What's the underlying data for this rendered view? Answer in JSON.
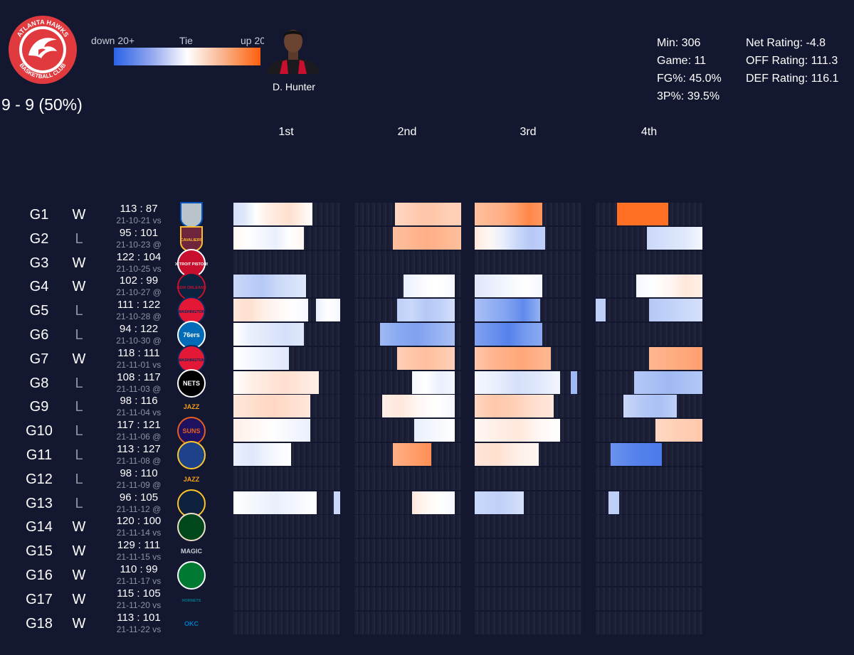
{
  "team": {
    "logo_name": "atlanta-hawks-logo",
    "logo_text_top": "ATLANTA HAWKS",
    "logo_text_bottom": "BASKETBALL CLUB",
    "record": "9 - 9 (50%)"
  },
  "legend": {
    "low_label": "down 20+",
    "mid_label": "Tie",
    "high_label": "up 20+",
    "colors": {
      "low": "#2b63e6",
      "mid": "#ffffff",
      "high": "#ff5f0c"
    }
  },
  "player": {
    "name": "D. Hunter",
    "icon": "player-headshot-icon"
  },
  "stats_left": [
    "Min: 306",
    "Game: 11",
    "FG%: 45.0%",
    "3P%: 39.5%"
  ],
  "stats_right": [
    "Net Rating: -4.8",
    "OFF Rating: 111.3",
    "DEF Rating: 116.1"
  ],
  "quarters": [
    "1st",
    "2nd",
    "3rd",
    "4th"
  ],
  "chart_data": {
    "type": "heatmap",
    "title": "",
    "color_scale": {
      "min_label": "down 20+",
      "mid_label": "Tie",
      "max_label": "up 20+",
      "range": [
        -20,
        20
      ]
    },
    "quarters": [
      "1st",
      "2nd",
      "3rd",
      "4th"
    ],
    "games": [
      {
        "game": "G1",
        "result": "W",
        "score": "113 : 87",
        "date_loc": "21-10-21 vs",
        "opponent": "DAL",
        "stints": [
          {
            "q": 1,
            "from": 0,
            "to": 0.74,
            "margins": [
              -4,
              -3,
              0,
              2,
              3,
              4,
              2,
              0
            ]
          },
          {
            "q": 2,
            "from": 0.38,
            "to": 1.0,
            "margins": [
              5,
              6,
              7,
              7,
              6,
              6
            ]
          },
          {
            "q": 3,
            "from": 0,
            "to": 0.63,
            "margins": [
              8,
              9,
              10,
              12,
              15,
              13
            ]
          },
          {
            "q": 4,
            "from": 0.2,
            "to": 0.68,
            "margins": [
              18,
              18,
              18
            ]
          }
        ]
      },
      {
        "game": "G2",
        "result": "L",
        "score": "95 : 101",
        "date_loc": "21-10-23 @",
        "opponent": "CLE",
        "stints": [
          {
            "q": 1,
            "from": 0,
            "to": 0.66,
            "margins": [
              1,
              0,
              -1,
              -2,
              0,
              1
            ]
          },
          {
            "q": 2,
            "from": 0.36,
            "to": 1.0,
            "margins": [
              8,
              9,
              10,
              9,
              8
            ]
          },
          {
            "q": 3,
            "from": 0,
            "to": 0.66,
            "margins": [
              3,
              1,
              -2,
              -5,
              -7,
              -6
            ]
          },
          {
            "q": 4,
            "from": 0.48,
            "to": 1.0,
            "margins": [
              -5,
              -4,
              -3,
              -1
            ]
          }
        ]
      },
      {
        "game": "G3",
        "result": "W",
        "score": "122 : 104",
        "date_loc": "21-10-25 vs",
        "opponent": "DET",
        "stints": []
      },
      {
        "game": "G4",
        "result": "W",
        "score": "102 : 99",
        "date_loc": "21-10-27 @",
        "opponent": "NOP",
        "stints": [
          {
            "q": 1,
            "from": 0,
            "to": 0.68,
            "margins": [
              -5,
              -6,
              -7,
              -5,
              -4,
              -3
            ]
          },
          {
            "q": 2,
            "from": 0.46,
            "to": 0.94,
            "margins": [
              -2,
              -1,
              0,
              0,
              -1
            ]
          },
          {
            "q": 3,
            "from": 0,
            "to": 0.63,
            "margins": [
              -3,
              -2,
              -1,
              0,
              -1
            ]
          },
          {
            "q": 4,
            "from": 0.38,
            "to": 1.0,
            "margins": [
              -1,
              0,
              1,
              3,
              2
            ]
          }
        ]
      },
      {
        "game": "G5",
        "result": "L",
        "score": "111 : 122",
        "date_loc": "21-10-28 @",
        "opponent": "WAS",
        "stints": [
          {
            "q": 1,
            "from": 0,
            "to": 0.7,
            "margins": [
              3,
              4,
              2,
              1,
              0,
              -1
            ]
          },
          {
            "q": 1,
            "from": 0.77,
            "to": 1.0,
            "margins": [
              -2,
              0,
              -1
            ]
          },
          {
            "q": 2,
            "from": 0.4,
            "to": 0.94,
            "margins": [
              -6,
              -5,
              -7,
              -6,
              -4
            ]
          },
          {
            "q": 3,
            "from": 0,
            "to": 0.61,
            "margins": [
              -8,
              -10,
              -12,
              -15,
              -10
            ]
          },
          {
            "q": 4,
            "from": 0.0,
            "to": 0.09,
            "margins": [
              -6
            ]
          },
          {
            "q": 4,
            "from": 0.5,
            "to": 1.0,
            "margins": [
              -7,
              -6,
              -5,
              -4
            ]
          }
        ]
      },
      {
        "game": "G6",
        "result": "L",
        "score": "94 : 122",
        "date_loc": "21-10-30 @",
        "opponent": "PHI",
        "stints": [
          {
            "q": 1,
            "from": 0,
            "to": 0.66,
            "margins": [
              0,
              -2,
              -3,
              -4,
              -3
            ]
          },
          {
            "q": 2,
            "from": 0.24,
            "to": 0.94,
            "margins": [
              -9,
              -11,
              -12,
              -10,
              -8
            ]
          },
          {
            "q": 3,
            "from": 0,
            "to": 0.63,
            "margins": [
              -12,
              -14,
              -16,
              -13,
              -11
            ]
          }
        ]
      },
      {
        "game": "G7",
        "result": "W",
        "score": "118 : 111",
        "date_loc": "21-11-01 vs",
        "opponent": "WAS",
        "stints": [
          {
            "q": 1,
            "from": 0,
            "to": 0.52,
            "margins": [
              0,
              -1,
              -2,
              -3
            ]
          },
          {
            "q": 2,
            "from": 0.4,
            "to": 0.94,
            "margins": [
              6,
              7,
              8,
              7,
              6
            ]
          },
          {
            "q": 3,
            "from": 0,
            "to": 0.71,
            "margins": [
              7,
              9,
              10,
              11,
              10,
              9
            ]
          },
          {
            "q": 4,
            "from": 0.5,
            "to": 1.0,
            "margins": [
              9,
              10,
              11,
              12
            ]
          }
        ]
      },
      {
        "game": "G8",
        "result": "L",
        "score": "108 : 117",
        "date_loc": "21-11-03 @",
        "opponent": "BKN",
        "stints": [
          {
            "q": 1,
            "from": 0,
            "to": 0.8,
            "margins": [
              0,
              2,
              3,
              4,
              3,
              2
            ]
          },
          {
            "q": 2,
            "from": 0.54,
            "to": 0.94,
            "margins": [
              -1,
              0,
              -2,
              -1
            ]
          },
          {
            "q": 3,
            "from": 0,
            "to": 0.8,
            "margins": [
              -1,
              -2,
              -4,
              -3,
              -1
            ]
          },
          {
            "q": 3,
            "from": 0.9,
            "to": 0.96,
            "margins": [
              -9
            ]
          },
          {
            "q": 4,
            "from": 0.36,
            "to": 1.0,
            "margins": [
              -7,
              -8,
              -9,
              -8,
              -7
            ]
          }
        ]
      },
      {
        "game": "G9",
        "result": "L",
        "score": "98 : 116",
        "date_loc": "21-11-04 vs",
        "opponent": "UTA",
        "stints": [
          {
            "q": 1,
            "from": 0,
            "to": 0.72,
            "margins": [
              3,
              4,
              5,
              4,
              3
            ]
          },
          {
            "q": 2,
            "from": 0.26,
            "to": 0.94,
            "margins": [
              2,
              3,
              1,
              0,
              -1
            ]
          },
          {
            "q": 3,
            "from": 0,
            "to": 0.74,
            "margins": [
              5,
              7,
              6,
              4,
              3
            ]
          },
          {
            "q": 4,
            "from": 0.26,
            "to": 0.76,
            "margins": [
              -5,
              -7,
              -8,
              -6
            ]
          }
        ]
      },
      {
        "game": "G10",
        "result": "L",
        "score": "117 : 121",
        "date_loc": "21-11-06 @",
        "opponent": "PHX",
        "stints": [
          {
            "q": 1,
            "from": 0,
            "to": 0.72,
            "margins": [
              2,
              1,
              0,
              -1,
              -2
            ]
          },
          {
            "q": 2,
            "from": 0.56,
            "to": 0.94,
            "margins": [
              -2,
              -1,
              0
            ]
          },
          {
            "q": 3,
            "from": 0,
            "to": 0.8,
            "margins": [
              1,
              2,
              3,
              1,
              0
            ]
          },
          {
            "q": 4,
            "from": 0.56,
            "to": 1.0,
            "margins": [
              5,
              6,
              7
            ]
          }
        ]
      },
      {
        "game": "G11",
        "result": "L",
        "score": "113 : 127",
        "date_loc": "21-11-08 @",
        "opponent": "GSW",
        "stints": [
          {
            "q": 1,
            "from": 0,
            "to": 0.54,
            "margins": [
              -2,
              -3,
              -1,
              0
            ]
          },
          {
            "q": 2,
            "from": 0.36,
            "to": 0.72,
            "margins": [
              10,
              12,
              14
            ]
          },
          {
            "q": 3,
            "from": 0,
            "to": 0.6,
            "margins": [
              3,
              4,
              2,
              1
            ]
          },
          {
            "q": 4,
            "from": 0.14,
            "to": 0.62,
            "margins": [
              -14,
              -16,
              -17
            ]
          }
        ]
      },
      {
        "game": "G12",
        "result": "L",
        "score": "98 : 110",
        "date_loc": "21-11-09 @",
        "opponent": "UTA",
        "stints": []
      },
      {
        "game": "G13",
        "result": "L",
        "score": "96 : 105",
        "date_loc": "21-11-12 @",
        "opponent": "DEN",
        "stints": [
          {
            "q": 1,
            "from": 0,
            "to": 0.78,
            "margins": [
              0,
              -1,
              -2,
              -1,
              0
            ]
          },
          {
            "q": 1,
            "from": 0.94,
            "to": 1.0,
            "margins": [
              -5
            ]
          },
          {
            "q": 2,
            "from": 0.54,
            "to": 0.94,
            "margins": [
              3,
              1,
              0,
              -1
            ]
          },
          {
            "q": 3,
            "from": 0,
            "to": 0.46,
            "margins": [
              -5,
              -6,
              -4
            ]
          },
          {
            "q": 4,
            "from": 0.12,
            "to": 0.22,
            "margins": [
              -6
            ]
          }
        ]
      },
      {
        "game": "G14",
        "result": "W",
        "score": "120 : 100",
        "date_loc": "21-11-14 vs",
        "opponent": "MIL",
        "stints": []
      },
      {
        "game": "G15",
        "result": "W",
        "score": "129 : 111",
        "date_loc": "21-11-15 vs",
        "opponent": "ORL",
        "stints": []
      },
      {
        "game": "G16",
        "result": "W",
        "score": "110 : 99",
        "date_loc": "21-11-17 vs",
        "opponent": "BOS",
        "stints": []
      },
      {
        "game": "G17",
        "result": "W",
        "score": "115 : 105",
        "date_loc": "21-11-20 vs",
        "opponent": "CHA",
        "stints": []
      },
      {
        "game": "G18",
        "result": "W",
        "score": "113 : 101",
        "date_loc": "21-11-22 vs",
        "opponent": "OKC",
        "stints": []
      }
    ]
  },
  "opponent_logos": {
    "DAL": {
      "text": "",
      "bg": "#b8c4ca",
      "fg": "#0053bc",
      "shape": "shield"
    },
    "CLE": {
      "text": "CAVALIERS",
      "bg": "#6f263d",
      "fg": "#fdbb30",
      "shape": "shield"
    },
    "DET": {
      "text": "DETROIT PISTONS",
      "bg": "#c8102e",
      "fg": "#ffffff",
      "shape": "circle"
    },
    "NOP": {
      "text": "NEW ORLEANS",
      "bg": "#0c2340",
      "fg": "#c8102e",
      "shape": "circle"
    },
    "WAS": {
      "text": "WASHINGTON",
      "bg": "#e31837",
      "fg": "#002b5c",
      "shape": "circle"
    },
    "PHI": {
      "text": "76ers",
      "bg": "#006bb6",
      "fg": "#ffffff",
      "shape": "circle"
    },
    "BKN": {
      "text": "NETS",
      "bg": "#000000",
      "fg": "#ffffff",
      "shape": "circle"
    },
    "UTA": {
      "text": "JAZZ",
      "bg": "#13172f",
      "fg": "#f9a01b",
      "shape": "none"
    },
    "PHX": {
      "text": "SUNS",
      "bg": "#1d1160",
      "fg": "#e56020",
      "shape": "circle"
    },
    "GSW": {
      "text": "",
      "bg": "#1d428a",
      "fg": "#ffc72c",
      "shape": "circle"
    },
    "DEN": {
      "text": "",
      "bg": "#0e2240",
      "fg": "#fec524",
      "shape": "circle"
    },
    "MIL": {
      "text": "",
      "bg": "#00471b",
      "fg": "#eee1c6",
      "shape": "circle"
    },
    "ORL": {
      "text": "MAGIC",
      "bg": "#0077c0",
      "fg": "#c4ced4",
      "shape": "none"
    },
    "BOS": {
      "text": "",
      "bg": "#007a33",
      "fg": "#ffffff",
      "shape": "circle"
    },
    "CHA": {
      "text": "HORNETS",
      "bg": "#1d1160",
      "fg": "#00788c",
      "shape": "none"
    },
    "OKC": {
      "text": "OKC",
      "bg": "#13172f",
      "fg": "#007ac1",
      "shape": "none"
    }
  }
}
